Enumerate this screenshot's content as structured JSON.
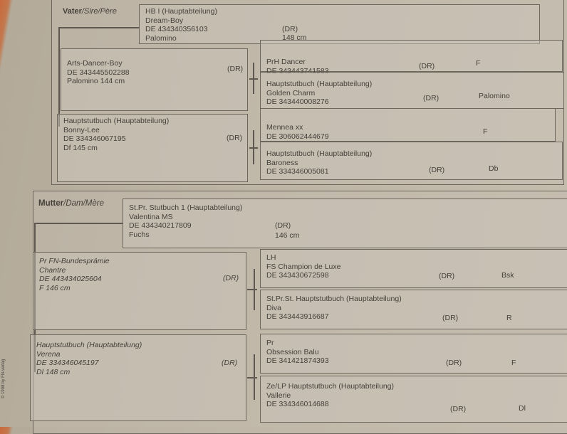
{
  "sire_section": {
    "label_bold": "Vater",
    "label_rest": "/Sire/Père",
    "sire": {
      "book": "HB I (Hauptabteilung)",
      "name": "Dream-Boy",
      "id": "DE 434340356103",
      "color": "Palomino",
      "breed": "(DR)",
      "height": "148 cm"
    },
    "sire_sire": {
      "name": "Arts-Dancer-Boy",
      "id": "DE 343445502288",
      "color_height": "Palomino   144 cm",
      "breed": "(DR)"
    },
    "sire_dam": {
      "book": "Hauptstutbuch (Hauptabteilung)",
      "name": "Bonny-Lee",
      "id": "DE 334346067195",
      "color_height": "Df   145 cm",
      "breed": "(DR)"
    },
    "gen3": [
      {
        "line1": "PrH Dancer",
        "line2": "DE 343443741583",
        "line3": "",
        "breed": "(DR)",
        "color": "F"
      },
      {
        "line1": "Hauptstutbuch (Hauptabteilung)",
        "line2": "Golden Charm",
        "line3": "DE 343440008276",
        "breed": "(DR)",
        "color": "Palomino"
      },
      {
        "line1": "Mennea   xx",
        "line2": "DE 306062444679",
        "line3": "",
        "breed": "",
        "color": "F"
      },
      {
        "line1": "Hauptstutbuch (Hauptabteilung)",
        "line2": "Baroness",
        "line3": "DE 334346005081",
        "breed": "(DR)",
        "color": "Db"
      }
    ]
  },
  "dam_section": {
    "label_bold": "Mutter",
    "label_rest": "/Dam/Mère",
    "dam": {
      "book": "St.Pr.   Stutbuch 1 (Hauptabteilung)",
      "name": "Valentina MS",
      "id": "DE 434340217809",
      "color": "Fuchs",
      "breed": "(DR)",
      "height": "146 cm"
    },
    "dam_sire": {
      "book": "Pr   FN-Bundesprämie",
      "name": "Chantre",
      "id": "DE 443434025604",
      "color_height": "F   146 cm",
      "breed": "(DR)"
    },
    "dam_dam": {
      "book": "Hauptstutbuch (Hauptabteilung)",
      "name": "Verena",
      "id": "DE 334346045197",
      "color_height": "Dl   148 cm",
      "breed": "(DR)"
    },
    "gen3": [
      {
        "line1": "LH",
        "line2": "FS Champion de Luxe",
        "line3": "DE 343430672598",
        "breed": "(DR)",
        "color": "Bsk"
      },
      {
        "line1": "St.Pr.St.   Hauptstutbuch (Hauptabteilung)",
        "line2": "Diva",
        "line3": "DE 343443916687",
        "breed": "(DR)",
        "color": "R"
      },
      {
        "line1": "Pr",
        "line2": "Obsession Balu",
        "line3": "DE 341421874393",
        "breed": "(DR)",
        "color": "F"
      },
      {
        "line1": "Ze/LP   Hauptstutbuch (Hauptabteilung)",
        "line2": "Vallerie",
        "line3": "DE 334346014688",
        "breed": "(DR)",
        "color": "Dl"
      }
    ]
  },
  "footer": {
    "copyright": "© 1998 by FN-verlag"
  }
}
